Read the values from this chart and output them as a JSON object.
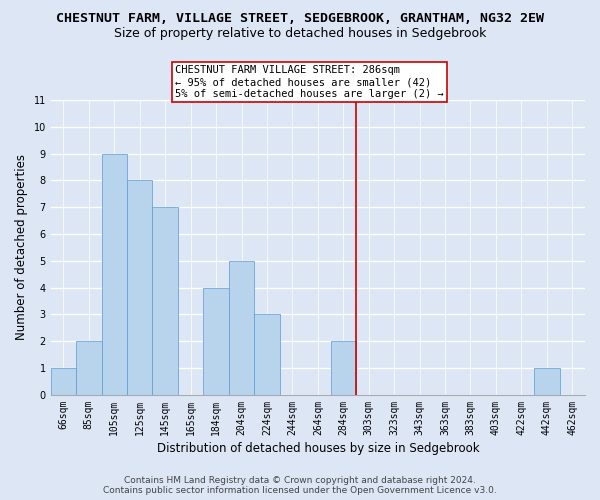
{
  "title": "CHESTNUT FARM, VILLAGE STREET, SEDGEBROOK, GRANTHAM, NG32 2EW",
  "subtitle": "Size of property relative to detached houses in Sedgebrook",
  "xlabel": "Distribution of detached houses by size in Sedgebrook",
  "ylabel": "Number of detached properties",
  "bin_labels": [
    "66sqm",
    "85sqm",
    "105sqm",
    "125sqm",
    "145sqm",
    "165sqm",
    "184sqm",
    "204sqm",
    "224sqm",
    "244sqm",
    "264sqm",
    "284sqm",
    "303sqm",
    "323sqm",
    "343sqm",
    "363sqm",
    "383sqm",
    "403sqm",
    "422sqm",
    "442sqm",
    "462sqm"
  ],
  "bar_heights": [
    1,
    2,
    9,
    8,
    7,
    0,
    4,
    5,
    3,
    0,
    0,
    2,
    0,
    0,
    0,
    0,
    0,
    0,
    0,
    1,
    0
  ],
  "bar_color": "#b8d4ec",
  "bar_edge_color": "#5b9bd5",
  "annotation_text_lines": [
    "CHESTNUT FARM VILLAGE STREET: 286sqm",
    "← 95% of detached houses are smaller (42)",
    "5% of semi-detached houses are larger (2) →"
  ],
  "annotation_line_color": "#cc0000",
  "ylim": [
    0,
    11
  ],
  "yticks": [
    0,
    1,
    2,
    3,
    4,
    5,
    6,
    7,
    8,
    9,
    10,
    11
  ],
  "footer_line1": "Contains HM Land Registry data © Crown copyright and database right 2024.",
  "footer_line2": "Contains public sector information licensed under the Open Government Licence v3.0.",
  "bg_color": "#dce6f5",
  "grid_color": "#ffffff",
  "title_fontsize": 9.5,
  "subtitle_fontsize": 9,
  "axis_label_fontsize": 8.5,
  "tick_fontsize": 7,
  "footer_fontsize": 6.5,
  "annot_fontsize": 7.5
}
